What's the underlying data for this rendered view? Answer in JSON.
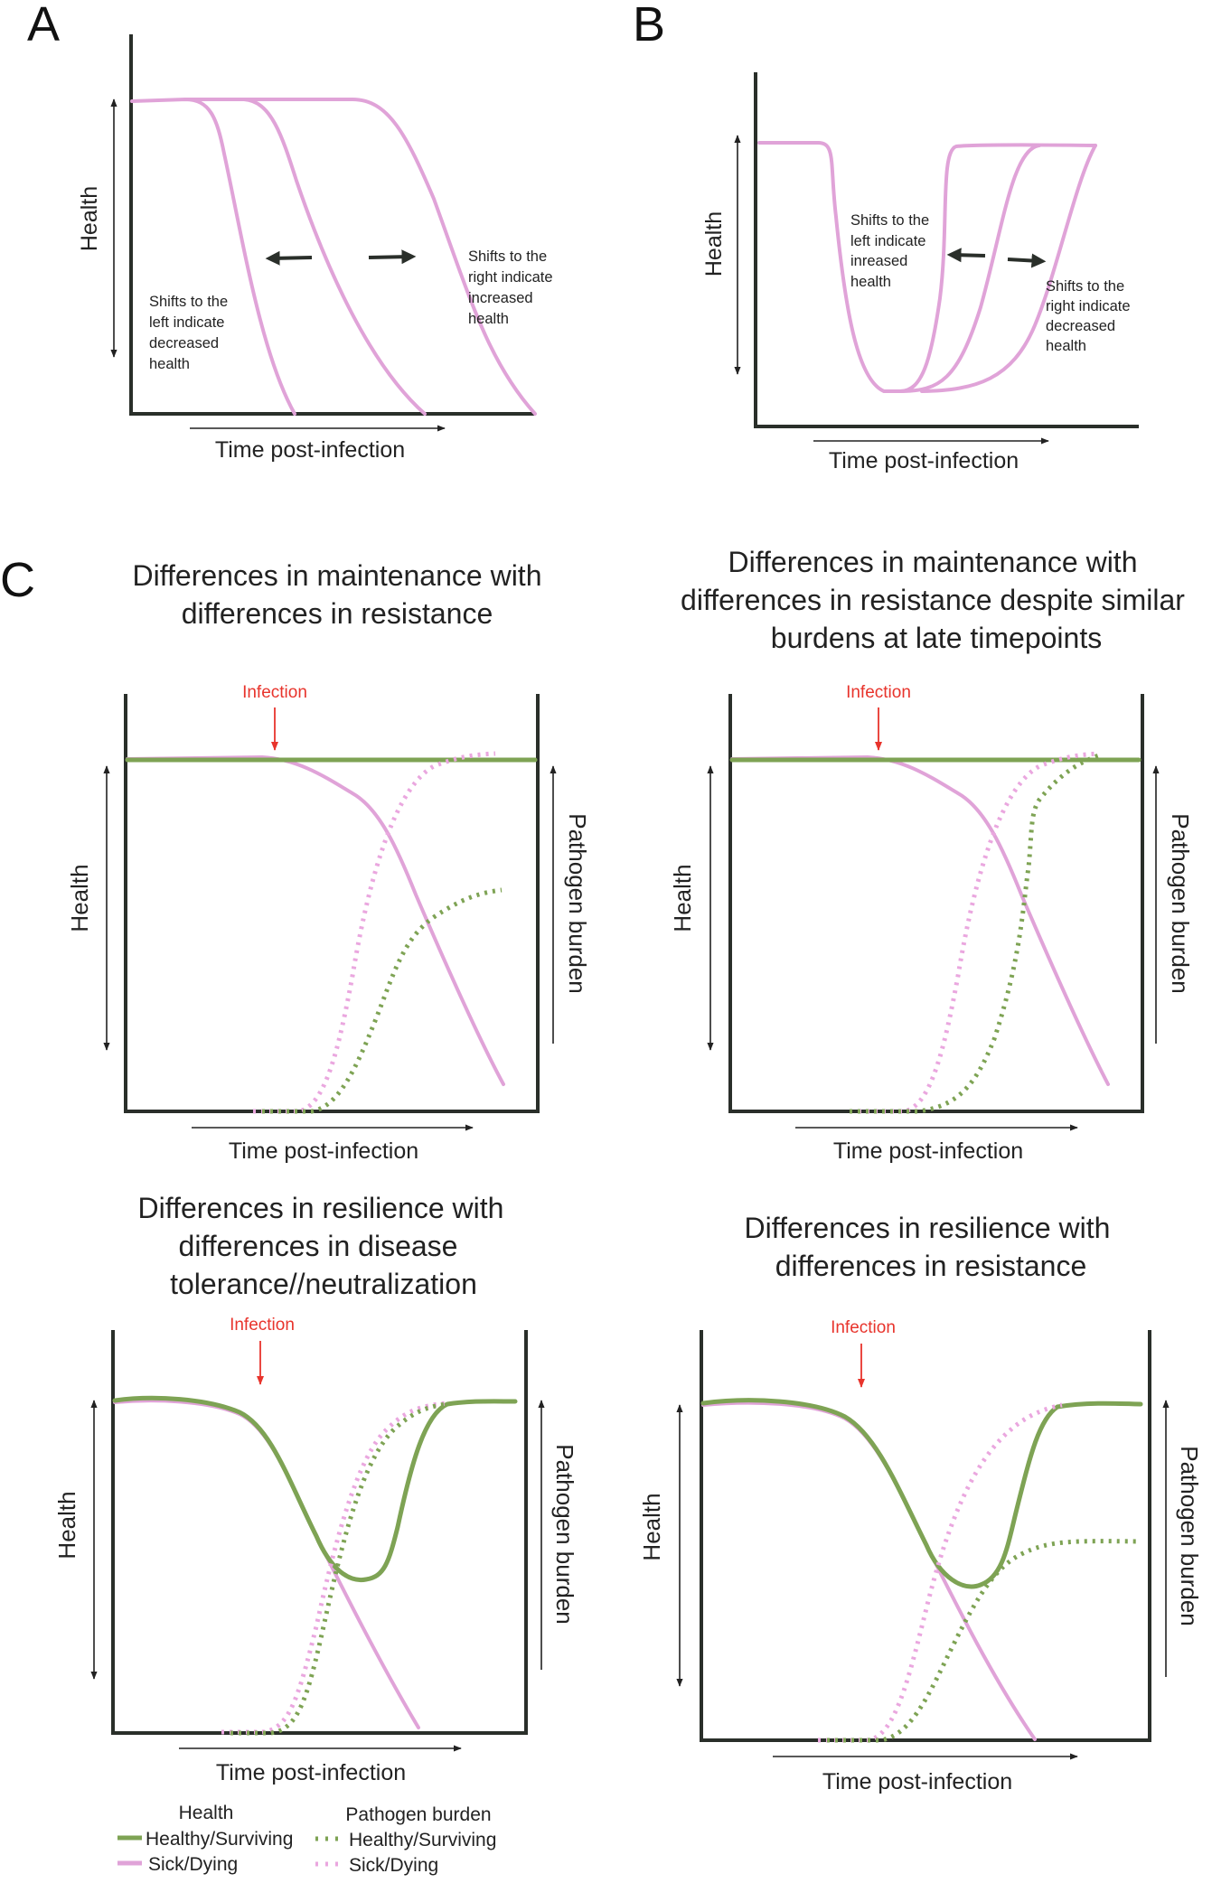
{
  "panels": {
    "A": {
      "letter": "A",
      "y_label": "Health",
      "x_label": "Time post-infection",
      "left_note": [
        "Shifts to the",
        "left indicate",
        "decreased",
        "health"
      ],
      "right_note": [
        "Shifts to the",
        "right indicate",
        "increased",
        "health"
      ]
    },
    "B": {
      "letter": "B",
      "y_label": "Health",
      "x_label": "Time post-infection",
      "left_note": [
        "Shifts to the",
        "left indicate",
        "inreased",
        "health"
      ],
      "right_note": [
        "Shifts to the",
        "right indicate",
        "decreased",
        "health"
      ]
    },
    "C": {
      "letter": "C",
      "subpanels": [
        {
          "title": [
            "Differences in maintenance with",
            "differences in resistance"
          ],
          "infection_label": "Infection",
          "y_label": "Health",
          "right_label": "Pathogen burden",
          "x_label": "Time post-infection"
        },
        {
          "title": [
            "Differences in maintenance with",
            "differences in resistance despite similar",
            "burdens at late timepoints"
          ],
          "infection_label": "Infection",
          "y_label": "Health",
          "right_label": "Pathogen burden",
          "x_label": "Time post-infection"
        },
        {
          "title": [
            "Differences in resilience with",
            "differences in disease",
            "tolerance//neutralization"
          ],
          "infection_label": "Infection",
          "y_label": "Health",
          "right_label": "Pathogen burden",
          "x_label": "Time post-infection"
        },
        {
          "title": [
            "Differences in resilience with",
            "differences in resistance"
          ],
          "infection_label": "Infection",
          "y_label": "Health",
          "right_label": "Pathogen burden",
          "x_label": "Time post-infection"
        }
      ]
    }
  },
  "legend": {
    "health_heading": "Health",
    "pathogen_heading": "Pathogen burden",
    "healthy_label": "Healthy/Surviving",
    "sick_label": "Sick/Dying"
  },
  "colors": {
    "healthy": "#7ea354",
    "sick": "#e0a3d8",
    "infection": "#e8342c",
    "axis": "#2a2f2a"
  }
}
